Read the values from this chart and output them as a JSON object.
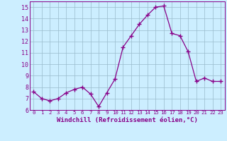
{
  "x": [
    0,
    1,
    2,
    3,
    4,
    5,
    6,
    7,
    8,
    9,
    10,
    11,
    12,
    13,
    14,
    15,
    16,
    17,
    18,
    19,
    20,
    21,
    22,
    23
  ],
  "y": [
    7.6,
    7.0,
    6.8,
    7.0,
    7.5,
    7.8,
    8.0,
    7.4,
    6.3,
    7.5,
    8.7,
    11.5,
    12.5,
    13.5,
    14.3,
    15.0,
    15.1,
    12.7,
    12.5,
    11.1,
    8.5,
    8.8,
    8.5,
    8.5
  ],
  "ylim": [
    6,
    15.5
  ],
  "yticks": [
    6,
    7,
    8,
    9,
    10,
    11,
    12,
    13,
    14,
    15
  ],
  "xticks": [
    0,
    1,
    2,
    3,
    4,
    5,
    6,
    7,
    8,
    9,
    10,
    11,
    12,
    13,
    14,
    15,
    16,
    17,
    18,
    19,
    20,
    21,
    22,
    23
  ],
  "xlabel": "Windchill (Refroidissement éolien,°C)",
  "line_color": "#880088",
  "marker": "+",
  "marker_size": 4,
  "marker_linewidth": 1.0,
  "bg_color": "#cceeff",
  "grid_color": "#99bbcc",
  "xlabel_fontsize": 6.5,
  "ytick_fontsize": 6,
  "xtick_fontsize": 5.2,
  "line_width": 0.9
}
